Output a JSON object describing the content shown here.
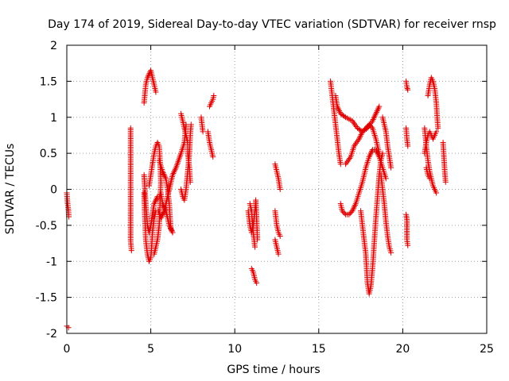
{
  "chart_data": {
    "type": "scatter",
    "title": "Day 174 of 2019, Sidereal Day-to-day VTEC variation (SDTVAR) for receiver rnsp",
    "xlabel": "GPS time / hours",
    "ylabel": "SDTVAR / TECUs",
    "xlim": [
      0,
      25
    ],
    "ylim": [
      -2,
      2
    ],
    "xticks": [
      0,
      5,
      10,
      15,
      20,
      25
    ],
    "yticks": [
      -2,
      -1.5,
      -1,
      -0.5,
      0,
      0.5,
      1,
      1.5,
      2
    ],
    "xtick_labels": [
      "0",
      "5",
      "10",
      "15",
      "20",
      "25"
    ],
    "ytick_labels": [
      "-2",
      "-1.5",
      "-1",
      "-0.5",
      "0",
      "0.5",
      "1",
      "1.5",
      "2"
    ],
    "grid": true,
    "marker": "+",
    "marker_color": "#e00000",
    "tracks": [
      {
        "name": "t01",
        "points": [
          [
            0.0,
            -0.05
          ],
          [
            0.05,
            -0.2
          ],
          [
            0.1,
            -0.3
          ],
          [
            0.12,
            -0.38
          ]
        ]
      },
      {
        "name": "t02",
        "points": [
          [
            0.0,
            -1.9
          ],
          [
            0.1,
            -1.92
          ]
        ]
      },
      {
        "name": "t03",
        "points": [
          [
            3.8,
            0.85
          ],
          [
            3.8,
            0.22
          ],
          [
            3.8,
            -0.27
          ],
          [
            3.8,
            -0.72
          ],
          [
            3.85,
            -0.85
          ]
        ]
      },
      {
        "name": "t04",
        "points": [
          [
            4.6,
            1.2
          ],
          [
            4.7,
            1.45
          ],
          [
            4.8,
            1.55
          ],
          [
            5.0,
            1.65
          ],
          [
            5.1,
            1.55
          ],
          [
            5.2,
            1.45
          ],
          [
            5.3,
            1.35
          ]
        ]
      },
      {
        "name": "t05",
        "points": [
          [
            4.6,
            -0.05
          ],
          [
            4.65,
            -0.4
          ],
          [
            4.7,
            -0.7
          ],
          [
            4.8,
            -0.9
          ],
          [
            4.9,
            -1.0
          ],
          [
            5.0,
            -0.95
          ],
          [
            5.05,
            -0.8
          ],
          [
            5.1,
            -0.6
          ],
          [
            5.2,
            -0.4
          ],
          [
            5.3,
            -0.3
          ],
          [
            5.45,
            -0.3
          ],
          [
            5.6,
            -0.4
          ],
          [
            5.8,
            -0.3
          ],
          [
            6.0,
            -0.1
          ],
          [
            6.3,
            0.2
          ],
          [
            6.5,
            0.3
          ],
          [
            6.8,
            0.5
          ],
          [
            7.0,
            0.65
          ],
          [
            7.1,
            0.9
          ]
        ]
      },
      {
        "name": "t06",
        "points": [
          [
            4.6,
            0.2
          ],
          [
            4.7,
            -0.2
          ],
          [
            4.8,
            -0.5
          ],
          [
            4.9,
            -0.6
          ],
          [
            5.0,
            -0.5
          ],
          [
            5.2,
            -0.2
          ],
          [
            5.4,
            -0.1
          ],
          [
            5.5,
            -0.1
          ],
          [
            5.6,
            -0.05
          ],
          [
            5.7,
            -0.2
          ],
          [
            5.9,
            -0.3
          ],
          [
            6.1,
            -0.5
          ],
          [
            6.3,
            -0.6
          ]
        ]
      },
      {
        "name": "t07",
        "points": [
          [
            4.9,
            0.05
          ],
          [
            5.0,
            0.2
          ],
          [
            5.1,
            0.35
          ],
          [
            5.2,
            0.5
          ],
          [
            5.3,
            0.6
          ],
          [
            5.4,
            0.65
          ],
          [
            5.5,
            0.6
          ],
          [
            5.55,
            0.4
          ],
          [
            5.6,
            0.1
          ],
          [
            5.55,
            -0.2
          ],
          [
            5.5,
            -0.5
          ],
          [
            5.4,
            -0.7
          ],
          [
            5.3,
            -0.8
          ],
          [
            5.2,
            -0.9
          ]
        ]
      },
      {
        "name": "t08",
        "points": [
          [
            5.5,
            0.4
          ],
          [
            5.7,
            0.25
          ],
          [
            5.9,
            0.15
          ],
          [
            6.0,
            0.0
          ],
          [
            6.1,
            -0.2
          ],
          [
            6.15,
            -0.4
          ],
          [
            6.2,
            -0.55
          ],
          [
            6.3,
            -0.6
          ]
        ]
      },
      {
        "name": "t09",
        "points": [
          [
            6.8,
            1.05
          ],
          [
            6.9,
            0.95
          ],
          [
            7.0,
            0.85
          ],
          [
            7.1,
            0.75
          ],
          [
            7.2,
            0.65
          ],
          [
            7.2,
            0.5
          ],
          [
            7.3,
            0.3
          ],
          [
            7.35,
            0.1
          ]
        ]
      },
      {
        "name": "t10",
        "points": [
          [
            6.8,
            0.0
          ],
          [
            6.9,
            -0.1
          ],
          [
            7.0,
            -0.15
          ],
          [
            7.1,
            0.0
          ],
          [
            7.2,
            0.25
          ],
          [
            7.3,
            0.5
          ],
          [
            7.35,
            0.75
          ],
          [
            7.4,
            0.9
          ]
        ]
      },
      {
        "name": "t11",
        "points": [
          [
            8.0,
            1.0
          ],
          [
            8.05,
            0.9
          ],
          [
            8.1,
            0.8
          ]
        ]
      },
      {
        "name": "t12",
        "points": [
          [
            8.5,
            1.15
          ],
          [
            8.6,
            1.2
          ],
          [
            8.7,
            1.25
          ],
          [
            8.75,
            1.3
          ]
        ]
      },
      {
        "name": "t13",
        "points": [
          [
            8.4,
            0.8
          ],
          [
            8.5,
            0.65
          ],
          [
            8.6,
            0.55
          ],
          [
            8.7,
            0.45
          ]
        ]
      },
      {
        "name": "t14",
        "points": [
          [
            10.8,
            -0.3
          ],
          [
            10.9,
            -0.5
          ],
          [
            11.0,
            -0.6
          ],
          [
            11.1,
            -0.5
          ],
          [
            11.2,
            -0.3
          ],
          [
            11.25,
            -0.15
          ],
          [
            11.3,
            -0.4
          ],
          [
            11.35,
            -0.7
          ]
        ]
      },
      {
        "name": "t15",
        "points": [
          [
            10.9,
            -0.2
          ],
          [
            11.0,
            -0.3
          ],
          [
            11.1,
            -0.6
          ],
          [
            11.2,
            -0.8
          ]
        ]
      },
      {
        "name": "t16",
        "points": [
          [
            11.0,
            -1.1
          ],
          [
            11.1,
            -1.15
          ],
          [
            11.2,
            -1.25
          ],
          [
            11.3,
            -1.3
          ]
        ]
      },
      {
        "name": "t17",
        "points": [
          [
            12.4,
            0.35
          ],
          [
            12.5,
            0.25
          ],
          [
            12.6,
            0.15
          ],
          [
            12.7,
            0.0
          ]
        ]
      },
      {
        "name": "t18",
        "points": [
          [
            12.4,
            -0.3
          ],
          [
            12.5,
            -0.5
          ],
          [
            12.6,
            -0.6
          ],
          [
            12.7,
            -0.65
          ]
        ]
      },
      {
        "name": "t19",
        "points": [
          [
            12.4,
            -0.7
          ],
          [
            12.5,
            -0.8
          ],
          [
            12.6,
            -0.9
          ]
        ]
      },
      {
        "name": "t20",
        "points": [
          [
            15.7,
            1.5
          ],
          [
            15.8,
            1.3
          ],
          [
            15.9,
            1.1
          ],
          [
            16.0,
            0.9
          ],
          [
            16.1,
            0.7
          ],
          [
            16.2,
            0.5
          ],
          [
            16.3,
            0.35
          ]
        ]
      },
      {
        "name": "t21",
        "points": [
          [
            16.0,
            1.3
          ],
          [
            16.1,
            1.15
          ],
          [
            16.3,
            1.05
          ],
          [
            16.6,
            1.0
          ],
          [
            17.0,
            0.95
          ],
          [
            17.3,
            0.85
          ],
          [
            17.6,
            0.8
          ],
          [
            17.9,
            0.85
          ],
          [
            18.2,
            0.95
          ],
          [
            18.4,
            1.05
          ],
          [
            18.6,
            1.15
          ]
        ]
      },
      {
        "name": "t22",
        "points": [
          [
            16.6,
            0.35
          ],
          [
            16.9,
            0.45
          ],
          [
            17.1,
            0.6
          ],
          [
            17.4,
            0.7
          ],
          [
            17.6,
            0.8
          ],
          [
            17.8,
            0.85
          ],
          [
            18.0,
            0.9
          ],
          [
            18.2,
            0.85
          ],
          [
            18.4,
            0.7
          ],
          [
            18.6,
            0.5
          ]
        ]
      },
      {
        "name": "t23",
        "points": [
          [
            16.3,
            -0.2
          ],
          [
            16.4,
            -0.3
          ],
          [
            16.6,
            -0.35
          ],
          [
            16.8,
            -0.35
          ],
          [
            17.0,
            -0.3
          ],
          [
            17.2,
            -0.2
          ],
          [
            17.4,
            -0.05
          ],
          [
            17.6,
            0.1
          ],
          [
            17.8,
            0.3
          ],
          [
            18.0,
            0.45
          ],
          [
            18.2,
            0.55
          ],
          [
            18.4,
            0.55
          ],
          [
            18.6,
            0.45
          ],
          [
            18.8,
            0.3
          ],
          [
            19.0,
            0.15
          ]
        ]
      },
      {
        "name": "t24",
        "points": [
          [
            17.5,
            -0.3
          ],
          [
            17.6,
            -0.5
          ],
          [
            17.7,
            -0.7
          ],
          [
            17.8,
            -0.9
          ],
          [
            17.85,
            -1.1
          ],
          [
            17.9,
            -1.3
          ],
          [
            18.0,
            -1.45
          ],
          [
            18.1,
            -1.35
          ],
          [
            18.2,
            -1.1
          ],
          [
            18.3,
            -0.75
          ],
          [
            18.4,
            -0.4
          ],
          [
            18.5,
            -0.1
          ],
          [
            18.6,
            0.2
          ],
          [
            18.7,
            0.4
          ],
          [
            18.8,
            0.5
          ]
        ]
      },
      {
        "name": "t25",
        "points": [
          [
            18.7,
            0.2
          ],
          [
            18.8,
            0.0
          ],
          [
            18.9,
            -0.2
          ],
          [
            19.0,
            -0.45
          ],
          [
            19.1,
            -0.65
          ],
          [
            19.2,
            -0.8
          ],
          [
            19.3,
            -0.88
          ]
        ]
      },
      {
        "name": "t26",
        "points": [
          [
            18.8,
            1.0
          ],
          [
            18.9,
            0.9
          ],
          [
            19.0,
            0.8
          ],
          [
            19.1,
            0.6
          ],
          [
            19.2,
            0.45
          ],
          [
            19.3,
            0.3
          ]
        ]
      },
      {
        "name": "t27",
        "points": [
          [
            20.2,
            1.5
          ],
          [
            20.25,
            1.42
          ],
          [
            20.3,
            1.38
          ]
        ]
      },
      {
        "name": "t28",
        "points": [
          [
            20.2,
            0.85
          ],
          [
            20.25,
            0.7
          ],
          [
            20.3,
            0.6
          ]
        ]
      },
      {
        "name": "t29",
        "points": [
          [
            20.2,
            -0.35
          ],
          [
            20.25,
            -0.42
          ],
          [
            20.25,
            -0.7
          ],
          [
            20.3,
            -0.78
          ]
        ]
      },
      {
        "name": "t30",
        "points": [
          [
            21.5,
            1.3
          ],
          [
            21.6,
            1.45
          ],
          [
            21.7,
            1.55
          ],
          [
            21.8,
            1.5
          ],
          [
            21.9,
            1.4
          ],
          [
            22.0,
            1.2
          ],
          [
            22.05,
            1.0
          ],
          [
            22.1,
            0.85
          ]
        ]
      },
      {
        "name": "t31",
        "points": [
          [
            21.3,
            0.85
          ],
          [
            21.4,
            0.6
          ],
          [
            21.5,
            0.4
          ],
          [
            21.6,
            0.25
          ],
          [
            21.7,
            0.15
          ],
          [
            21.8,
            0.05
          ],
          [
            21.9,
            0.0
          ],
          [
            22.0,
            -0.05
          ]
        ]
      },
      {
        "name": "t32",
        "points": [
          [
            21.3,
            0.5
          ],
          [
            21.4,
            0.65
          ],
          [
            21.5,
            0.75
          ],
          [
            21.6,
            0.8
          ],
          [
            21.7,
            0.75
          ],
          [
            21.8,
            0.7
          ],
          [
            21.9,
            0.75
          ],
          [
            22.0,
            0.8
          ]
        ]
      },
      {
        "name": "t33",
        "points": [
          [
            21.4,
            0.3
          ],
          [
            21.5,
            0.2
          ],
          [
            21.6,
            0.15
          ]
        ]
      },
      {
        "name": "t34",
        "points": [
          [
            22.4,
            0.65
          ],
          [
            22.45,
            0.45
          ],
          [
            22.5,
            0.25
          ],
          [
            22.55,
            0.1
          ]
        ]
      }
    ]
  }
}
